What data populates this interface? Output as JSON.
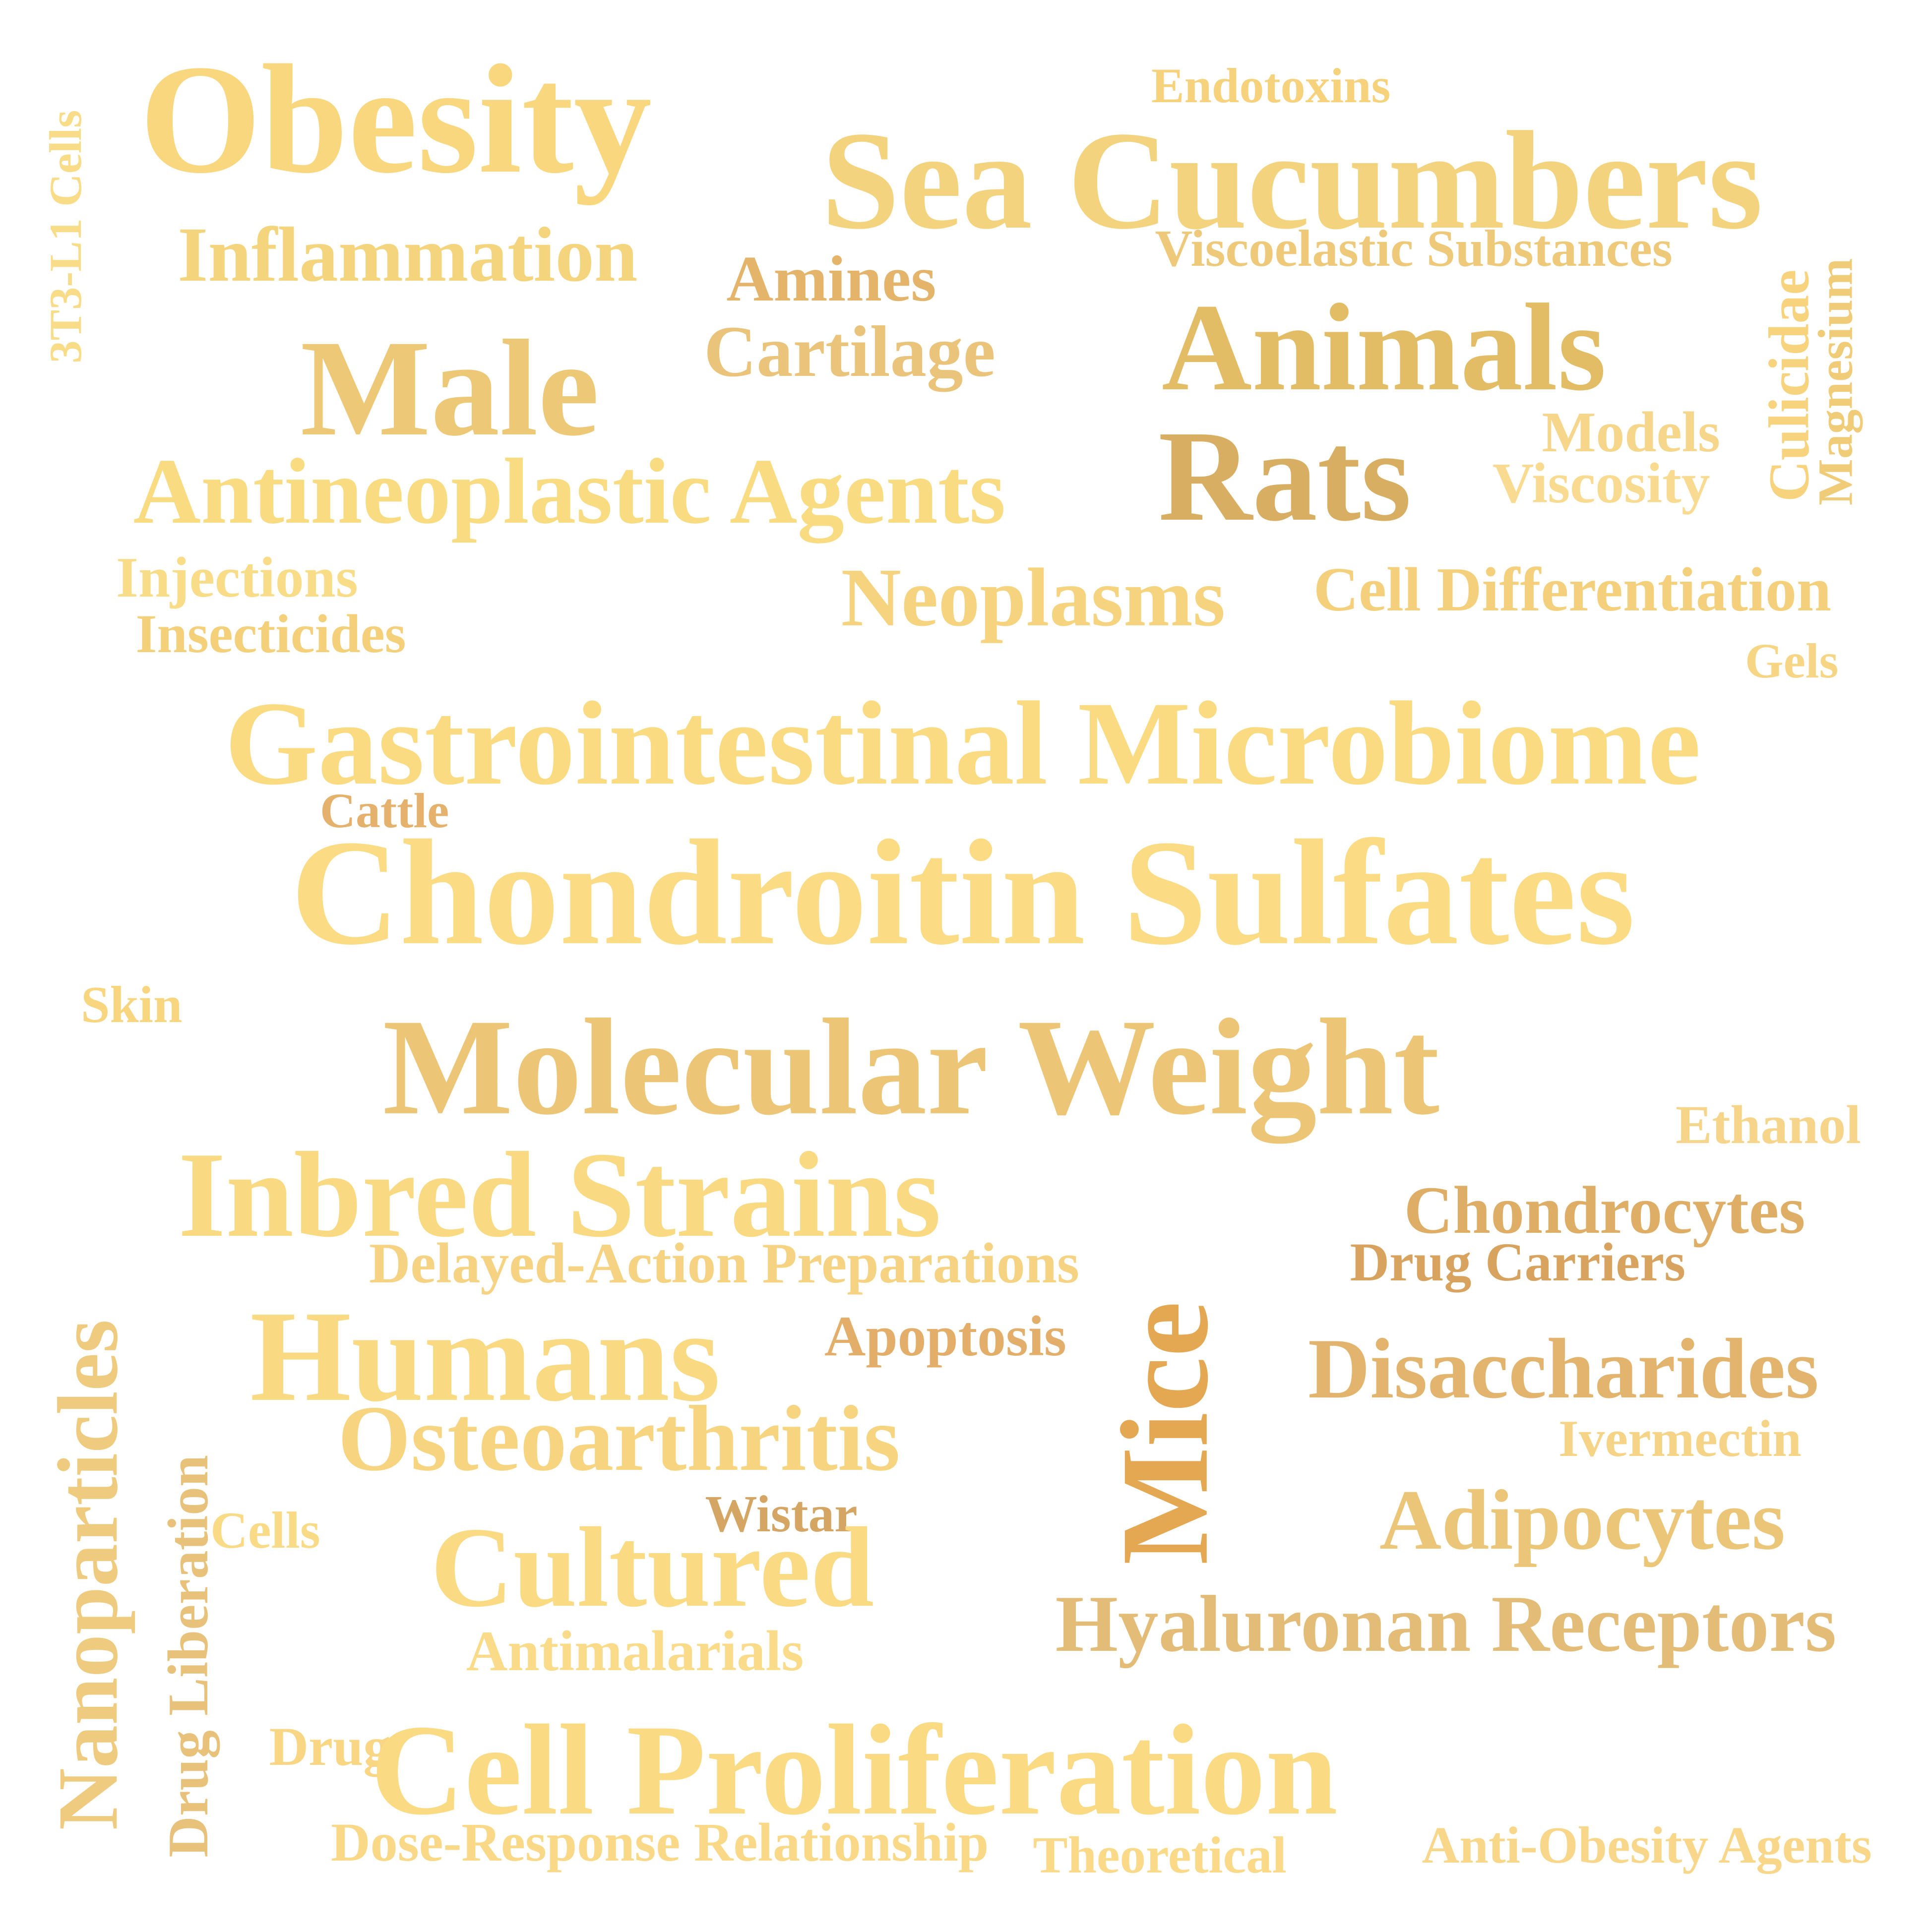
{
  "words": [
    {
      "text": "Obesity",
      "color": "#F8D77E"
    },
    {
      "text": "Sea Cucumbers",
      "color": "#F3D37E"
    },
    {
      "text": "Endotoxins",
      "color": "#F6D27C"
    },
    {
      "text": "3T3-L1 Cells",
      "color": "#F9DC88"
    },
    {
      "text": "Inflammation",
      "color": "#F5D47E"
    },
    {
      "text": "Amines",
      "color": "#E3B46A"
    },
    {
      "text": "Viscoelastic Substances",
      "color": "#EDC979"
    },
    {
      "text": "Cartilage",
      "color": "#EAC47B"
    },
    {
      "text": "Male",
      "color": "#EDC877"
    },
    {
      "text": "Animals",
      "color": "#E3BC66"
    },
    {
      "text": "Culicidae",
      "color": "#F6D37C"
    },
    {
      "text": "Magnesium",
      "color": "#F0CC79"
    },
    {
      "text": "Rats",
      "color": "#D8AE63"
    },
    {
      "text": "Models",
      "color": "#F5D68A"
    },
    {
      "text": "Viscosity",
      "color": "#F8DB90"
    },
    {
      "text": "Antineoplastic Agents",
      "color": "#F9DB81"
    },
    {
      "text": "Injections",
      "color": "#F9DC88"
    },
    {
      "text": "Insecticides",
      "color": "#F4D07A"
    },
    {
      "text": "Neoplasms",
      "color": "#F6D47F"
    },
    {
      "text": "Cell Differentiation",
      "color": "#F4D07C"
    },
    {
      "text": "Gels",
      "color": "#F6D584"
    },
    {
      "text": "Gastrointestinal Microbiome",
      "color": "#FADB82"
    },
    {
      "text": "Cattle",
      "color": "#E4B26C"
    },
    {
      "text": "Chondroitin Sulfates",
      "color": "#FBDC84"
    },
    {
      "text": "Skin",
      "color": "#F8D680"
    },
    {
      "text": "Molecular Weight",
      "color": "#ECC676"
    },
    {
      "text": "Ethanol",
      "color": "#F6D58A"
    },
    {
      "text": "Inbred Strains",
      "color": "#F9DA82"
    },
    {
      "text": "Chondrocytes",
      "color": "#DFAE66"
    },
    {
      "text": "Delayed-Action Preparations",
      "color": "#F6D283"
    },
    {
      "text": "Drug Carriers",
      "color": "#D8A35F"
    },
    {
      "text": "Humans",
      "color": "#FAD983"
    },
    {
      "text": "Apoptosis",
      "color": "#E2AE6A"
    },
    {
      "text": "Mice",
      "color": "#E4A752"
    },
    {
      "text": "Disaccharides",
      "color": "#E3B46E"
    },
    {
      "text": "Nanoparticles",
      "color": "#EECB7E"
    },
    {
      "text": "Osteoarthritis",
      "color": "#F7D480"
    },
    {
      "text": "Ivermectin",
      "color": "#F6D487"
    },
    {
      "text": "Drug Liberation",
      "color": "#E8C27A"
    },
    {
      "text": "Cells",
      "color": "#F9DB87"
    },
    {
      "text": "Wistar",
      "color": "#D5A564"
    },
    {
      "text": "Adipocytes",
      "color": "#EBC679"
    },
    {
      "text": "Cultured",
      "color": "#FADB84"
    },
    {
      "text": "Hyaluronan Receptors",
      "color": "#E3BC78"
    },
    {
      "text": "Antimalarials",
      "color": "#FADB89"
    },
    {
      "text": "Drug",
      "color": "#F8D684"
    },
    {
      "text": "Cell Proliferation",
      "color": "#FADB84"
    },
    {
      "text": "Dose-Response Relationship",
      "color": "#F9D988"
    },
    {
      "text": "Theoretical",
      "color": "#FADA89"
    },
    {
      "text": "Anti-Obesity Agents",
      "color": "#F8D78A"
    }
  ]
}
